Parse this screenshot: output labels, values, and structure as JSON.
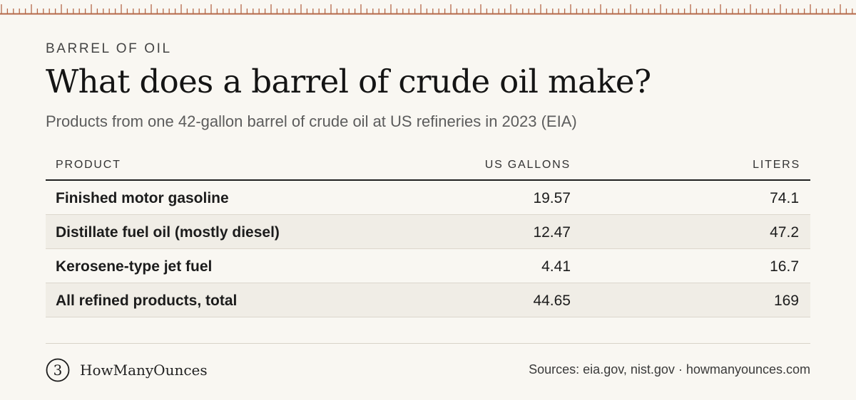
{
  "header": {
    "eyebrow": "BARREL OF OIL",
    "title": "What does a barrel of crude oil make?",
    "subtitle": "Products from one 42-gallon barrel of crude oil at US refineries in 2023 (EIA)"
  },
  "table": {
    "columns": [
      "PRODUCT",
      "US GALLONS",
      "LITERS"
    ],
    "rows": [
      [
        "Finished motor gasoline",
        "19.57",
        "74.1"
      ],
      [
        "Distillate fuel oil (mostly diesel)",
        "12.47",
        "47.2"
      ],
      [
        "Kerosene-type jet fuel",
        "4.41",
        "16.7"
      ],
      [
        "All refined products, total",
        "44.65",
        "169"
      ]
    ]
  },
  "footer": {
    "logo_glyph": "3",
    "brand": "HowManyOunces",
    "sources": "Sources: eia.gov, nist.gov · howmanyounces.com"
  },
  "colors": {
    "background": "#f9f7f2",
    "ruler": "#b5694a",
    "row_alt": "#f0ede6"
  },
  "icons": {
    "ruler": "measuring-ruler-strip",
    "logo": "circled-three-logo"
  }
}
